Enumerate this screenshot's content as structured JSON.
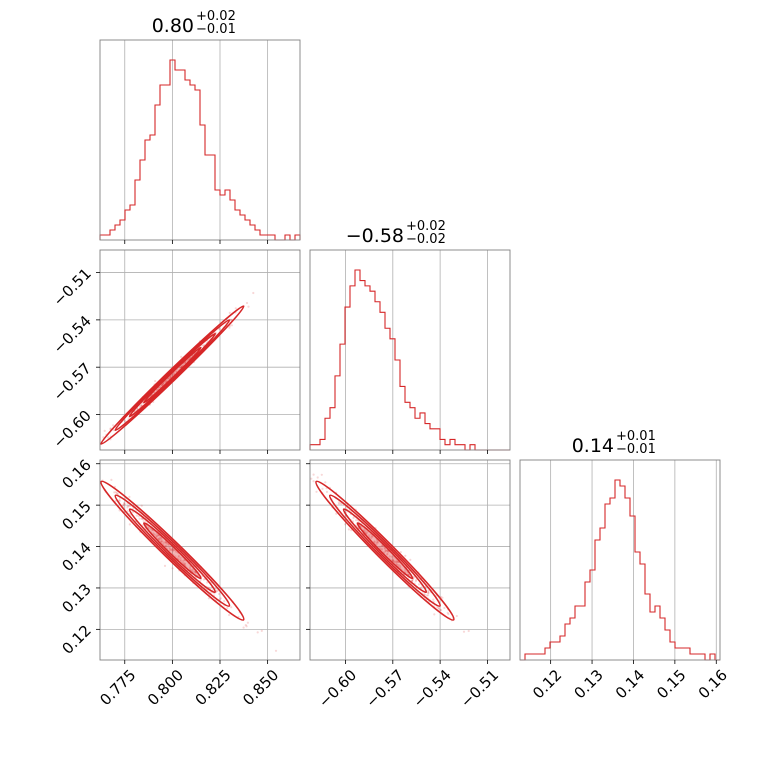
{
  "chart_data": {
    "type": "corner",
    "color": "#d62728",
    "grid": true,
    "parameters": [
      {
        "title": {
          "value": "0.80",
          "upper": "+0.02",
          "lower": "−0.01"
        },
        "range": [
          0.762,
          0.867
        ],
        "ticks": [
          0.775,
          0.8,
          0.825,
          0.85
        ],
        "tick_labels": [
          "0.775",
          "0.800",
          "0.825",
          "0.850"
        ],
        "hist": [
          1,
          1,
          2,
          3,
          4,
          6,
          7,
          12,
          16,
          20,
          21,
          27,
          31,
          31,
          36,
          34,
          34,
          32,
          31,
          30,
          23,
          17,
          17,
          10,
          9,
          10,
          8,
          6,
          5,
          4,
          3,
          2,
          1,
          1,
          1,
          0,
          0,
          1,
          0,
          1
        ]
      },
      {
        "title": {
          "value": "−0.58",
          "upper": "+0.02",
          "lower": "−0.02"
        },
        "range": [
          -0.6225,
          -0.4957
        ],
        "ticks": [
          -0.6,
          -0.57,
          -0.54,
          -0.51
        ],
        "tick_labels": [
          "−0.60",
          "−0.57",
          "−0.54",
          "−0.51"
        ],
        "hist": [
          1,
          1,
          2,
          6,
          8,
          14,
          20,
          27,
          31,
          34,
          32,
          31,
          30,
          28,
          26,
          23,
          21,
          17,
          12,
          9,
          8,
          6,
          7,
          5,
          4,
          4,
          2,
          1,
          2,
          1,
          1,
          0,
          1,
          0,
          0,
          0,
          0,
          0,
          0,
          0
        ]
      },
      {
        "title": {
          "value": "0.14",
          "upper": "+0.01",
          "lower": "−0.01"
        },
        "range": [
          0.1126,
          0.1609
        ],
        "ticks": [
          0.12,
          0.13,
          0.14,
          0.15,
          0.16
        ],
        "tick_labels": [
          "0.12",
          "0.13",
          "0.14",
          "0.15",
          "0.16"
        ],
        "hist": [
          0,
          1,
          1,
          1,
          1,
          2,
          3,
          3,
          4,
          6,
          7,
          9,
          9,
          13,
          15,
          20,
          22,
          26,
          27,
          30,
          29,
          27,
          24,
          18,
          16,
          11,
          8,
          9,
          7,
          5,
          3,
          2,
          2,
          2,
          1,
          1,
          1,
          0,
          1,
          0
        ]
      }
    ]
  }
}
